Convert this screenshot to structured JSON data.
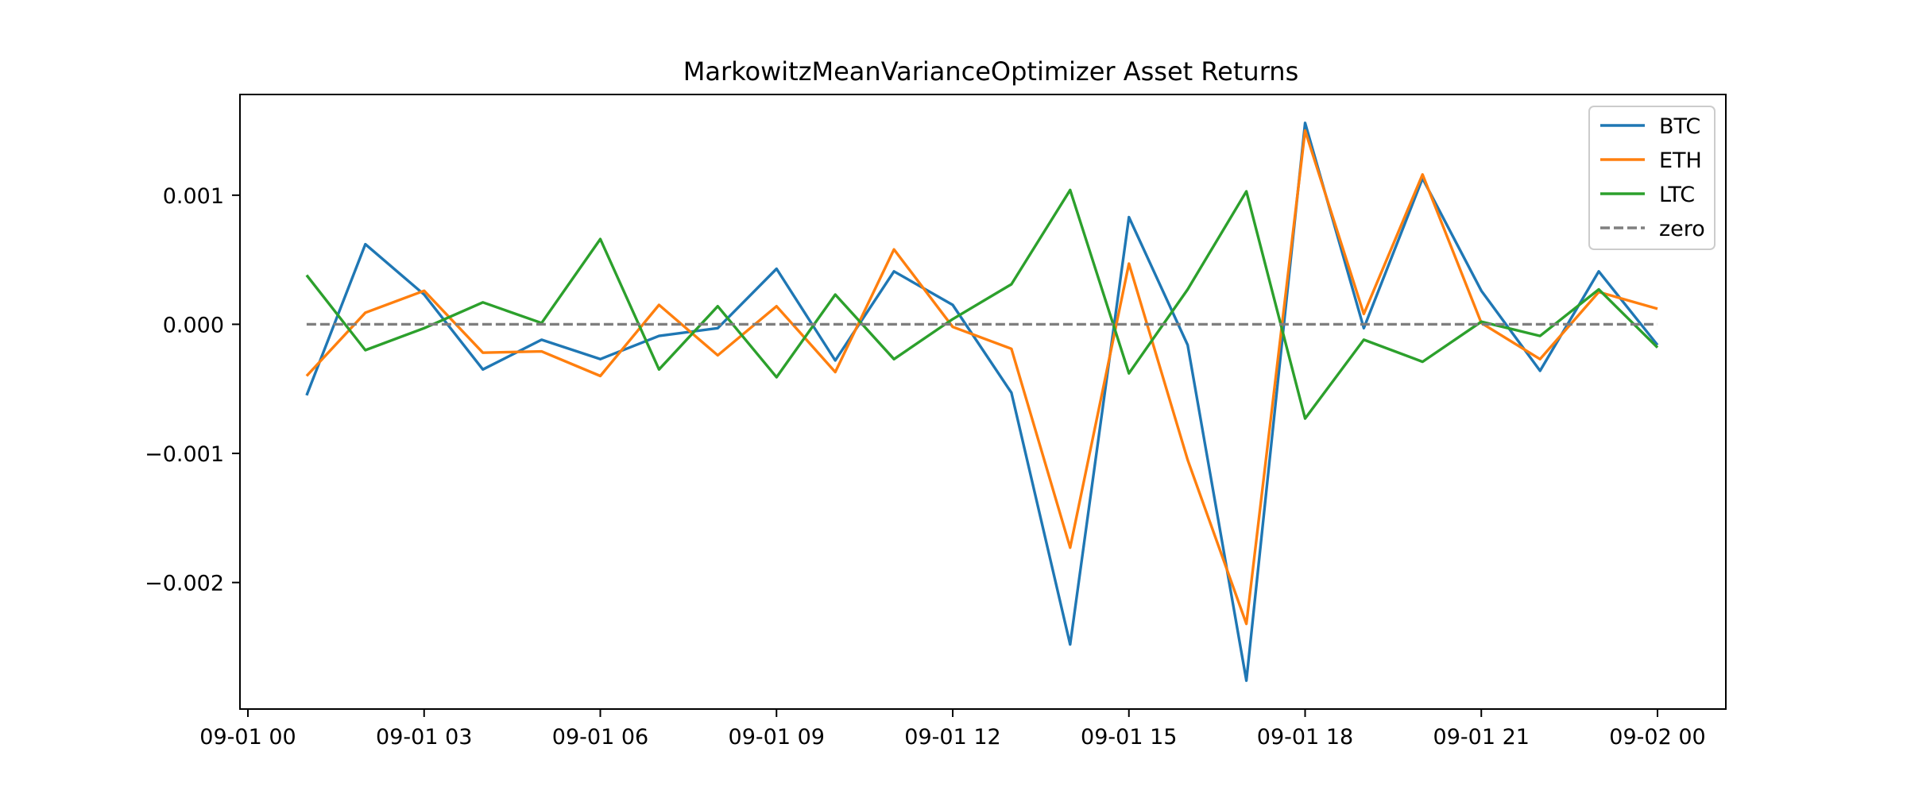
{
  "chart_data": {
    "type": "line",
    "title": "MarkowitzMeanVarianceOptimizer Asset Returns",
    "xlabel": "",
    "ylabel": "",
    "x": [
      "09-01 01:00",
      "09-01 02:00",
      "09-01 03:00",
      "09-01 04:00",
      "09-01 05:00",
      "09-01 06:00",
      "09-01 07:00",
      "09-01 08:00",
      "09-01 09:00",
      "09-01 10:00",
      "09-01 11:00",
      "09-01 12:00",
      "09-01 13:00",
      "09-01 14:00",
      "09-01 15:00",
      "09-01 16:00",
      "09-01 17:00",
      "09-01 18:00",
      "09-01 19:00",
      "09-01 20:00",
      "09-01 21:00",
      "09-01 22:00",
      "09-01 23:00",
      "09-02 00:00"
    ],
    "x_tick_labels": [
      "09-01 00",
      "09-01 03",
      "09-01 06",
      "09-01 09",
      "09-01 12",
      "09-01 15",
      "09-01 18",
      "09-01 21",
      "09-02 00"
    ],
    "x_range": [
      "09-01 00:00",
      "09-02 00:00"
    ],
    "y_ticks": [
      0.001,
      0.0,
      -0.001,
      -0.002
    ],
    "y_tick_labels": [
      "0.001",
      "0.000",
      "−0.001",
      "−0.002"
    ],
    "ylim": [
      -0.00298,
      0.00178
    ],
    "grid": false,
    "legend_position": "top-right",
    "series": [
      {
        "name": "BTC",
        "color": "#1f77b4",
        "style": "solid",
        "values": [
          -0.00055,
          0.00062,
          0.00023,
          -0.00035,
          -0.00012,
          -0.00027,
          -9e-05,
          -3e-05,
          0.00043,
          -0.00028,
          0.00041,
          0.00015,
          -0.00053,
          -0.00248,
          0.00083,
          -0.00016,
          -0.00276,
          0.00156,
          -3e-05,
          0.00113,
          0.00026,
          -0.00036,
          0.00041,
          -0.00016
        ]
      },
      {
        "name": "ETH",
        "color": "#ff7f0e",
        "style": "solid",
        "values": [
          -0.0004,
          9e-05,
          0.00026,
          -0.00022,
          -0.00021,
          -0.0004,
          0.00015,
          -0.00024,
          0.00014,
          -0.00037,
          0.00058,
          -2e-05,
          -0.00019,
          -0.00173,
          0.00047,
          -0.00105,
          -0.00232,
          0.0015,
          8e-05,
          0.00116,
          1e-05,
          -0.00027,
          0.00025,
          0.00012
        ]
      },
      {
        "name": "LTC",
        "color": "#2ca02c",
        "style": "solid",
        "values": [
          0.00038,
          -0.0002,
          -3e-05,
          0.00017,
          1e-05,
          0.00066,
          -0.00035,
          0.00014,
          -0.00041,
          0.00023,
          -0.00027,
          4e-05,
          0.00031,
          0.00104,
          -0.00038,
          0.00027,
          0.00103,
          -0.00073,
          -0.00012,
          -0.00029,
          2e-05,
          -9e-05,
          0.00027,
          -0.00018
        ]
      },
      {
        "name": "zero",
        "color": "#7f7f7f",
        "style": "dashed",
        "values": [
          0,
          0,
          0,
          0,
          0,
          0,
          0,
          0,
          0,
          0,
          0,
          0,
          0,
          0,
          0,
          0,
          0,
          0,
          0,
          0,
          0,
          0,
          0,
          0
        ]
      }
    ]
  }
}
